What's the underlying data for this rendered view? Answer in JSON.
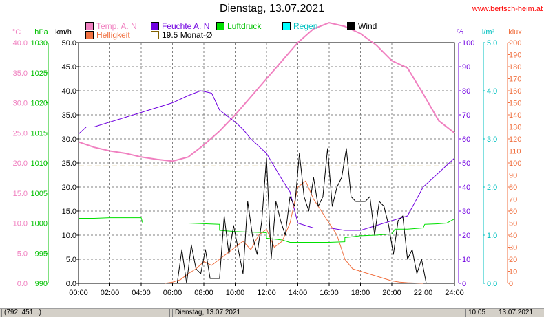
{
  "header": {
    "title": "Dienstag, 13.07.2021",
    "url": "www.bertsch-heim.at"
  },
  "legend": [
    {
      "label": "Temp. A. N",
      "color": "#f080c0"
    },
    {
      "label": "Feuchte A. N",
      "color": "#7000e0"
    },
    {
      "label": "Luftdruck",
      "color": "#00e000"
    },
    {
      "label": "Regen",
      "color": "#00ffff"
    },
    {
      "label": "Wind",
      "color": "#000000"
    },
    {
      "label": "Helligkeit",
      "color": "#f07040"
    },
    {
      "label": "19.5 Monat-Ø",
      "color": "#ffffff"
    }
  ],
  "statusbar": {
    "cell1": "(792, 451...)",
    "cell2": "Dienstag, 13.07.2021",
    "cell3": "10:05",
    "cell4": "13.07.2021"
  },
  "chart_data": {
    "type": "line",
    "x_unit": "hours",
    "x_range": [
      0,
      24
    ],
    "x_ticks": [
      "00:00",
      "02:00",
      "04:00",
      "06:00",
      "08:00",
      "10:00",
      "12:00",
      "14:00",
      "16:00",
      "18:00",
      "20:00",
      "22:00",
      "24:00"
    ],
    "axes": [
      {
        "unit": "°C",
        "color": "#f080c0",
        "range": [
          0,
          40
        ],
        "ticks": [
          "0.0",
          "5.0",
          "10.0",
          "15.0",
          "20.0",
          "25.0",
          "30.0",
          "35.0",
          "40.0"
        ]
      },
      {
        "unit": "hPa",
        "color": "#00c000",
        "range": [
          990,
          1030
        ],
        "ticks": [
          "990",
          "995",
          "1000",
          "1005",
          "1010",
          "1015",
          "1020",
          "1025",
          "1030"
        ]
      },
      {
        "unit": "km/h",
        "color": "#000000",
        "range": [
          0,
          50
        ],
        "ticks": [
          "0.0",
          "5.0",
          "10.0",
          "15.0",
          "20.0",
          "25.0",
          "30.0",
          "35.0",
          "40.0",
          "45.0",
          "50.0"
        ]
      },
      {
        "unit": "%",
        "color": "#7000e0",
        "range": [
          0,
          100
        ],
        "ticks": [
          "0",
          "10",
          "20",
          "30",
          "40",
          "50",
          "60",
          "70",
          "80",
          "90",
          "100"
        ]
      },
      {
        "unit": "l/m²",
        "color": "#00c0c0",
        "range": [
          0,
          5
        ],
        "ticks": [
          "0.0",
          "1.0",
          "2.0",
          "3.0",
          "4.0",
          "5.0"
        ]
      },
      {
        "unit": "klux",
        "color": "#f07040",
        "range": [
          0,
          200
        ],
        "ticks": [
          "0",
          "10",
          "20",
          "30",
          "40",
          "50",
          "60",
          "70",
          "80",
          "90",
          "100",
          "110",
          "120",
          "130",
          "140",
          "150",
          "160",
          "170",
          "180",
          "190",
          "200"
        ]
      }
    ],
    "monthly_avg": {
      "label": "19.5 Monat-Ø",
      "value": 19.5,
      "color": "#b08000"
    },
    "series": [
      {
        "name": "Temp. A. N",
        "axis": 0,
        "color": "#f080c0",
        "x": [
          0,
          1,
          2,
          3,
          4,
          5,
          6,
          7,
          8,
          9,
          10,
          11,
          12,
          13,
          14,
          15,
          16,
          17,
          18,
          19,
          20,
          21,
          22,
          23,
          24
        ],
        "y": [
          23.5,
          22.6,
          22.0,
          21.6,
          21.0,
          20.6,
          20.3,
          21.0,
          23.0,
          25.3,
          28.0,
          31.0,
          34.0,
          37.0,
          40.0,
          42.3,
          43.3,
          42.7,
          41.5,
          39.6,
          37.0,
          35.8,
          31.5,
          27.0,
          25.0
        ]
      },
      {
        "name": "Feuchte A. N",
        "axis": 3,
        "color": "#7000e0",
        "x": [
          0,
          0.5,
          1,
          2,
          3,
          4,
          5,
          6,
          7,
          7.8,
          8.5,
          9,
          10,
          10.5,
          11,
          12,
          13,
          13.5,
          14,
          14.5,
          15,
          16,
          17,
          18,
          19,
          20,
          20.5,
          21,
          22,
          22.5,
          23,
          24
        ],
        "y": [
          62,
          65,
          65,
          67,
          69,
          71,
          73,
          75,
          78,
          80,
          79,
          72,
          67,
          64,
          60,
          54,
          43,
          38,
          25,
          24,
          23,
          23,
          22,
          22,
          24,
          26,
          27,
          28,
          40,
          43,
          46,
          52
        ]
      },
      {
        "name": "Luftdruck",
        "axis": 1,
        "color": "#00e000",
        "x": [
          0,
          1,
          2,
          3,
          4,
          4.1,
          5,
          6,
          7,
          8,
          9,
          9,
          10,
          11,
          12,
          12,
          13,
          13.5,
          14,
          15,
          16,
          17,
          17,
          18,
          19,
          20,
          20.2,
          21,
          22,
          22.1,
          23,
          23.5,
          24
        ],
        "y": [
          1000.8,
          1000.8,
          1000.9,
          1000.9,
          1000.9,
          1000.0,
          1000.0,
          1000.0,
          1000.0,
          999.9,
          999.8,
          998.8,
          998.6,
          998.5,
          998.4,
          997.5,
          997.2,
          996.8,
          996.8,
          996.8,
          996.8,
          996.9,
          997.6,
          997.9,
          998.0,
          998.2,
          999.0,
          999.0,
          999.2,
          999.8,
          999.9,
          1000.0,
          1000.7
        ]
      },
      {
        "name": "Helligkeit",
        "axis": 5,
        "color": "#f07040",
        "x": [
          5.5,
          6,
          6.5,
          7,
          7.5,
          8,
          8.5,
          9,
          9.5,
          10,
          10.5,
          11,
          11.5,
          12,
          12.5,
          13,
          13.5,
          14,
          14.5,
          15,
          15.5,
          16,
          16.5,
          17,
          17.5,
          18,
          18.5,
          19,
          19.5,
          20,
          20.5,
          21,
          22
        ],
        "y": [
          0,
          1,
          3,
          8,
          12,
          18,
          15,
          20,
          25,
          30,
          35,
          28,
          40,
          45,
          30,
          35,
          50,
          80,
          85,
          70,
          60,
          50,
          40,
          20,
          12,
          10,
          8,
          6,
          4,
          2,
          1,
          0.5,
          0
        ]
      },
      {
        "name": "Wind",
        "axis": 2,
        "color": "#000000",
        "x": [
          6.3,
          6.6,
          6.9,
          7.2,
          7.5,
          7.8,
          8.1,
          8.4,
          8.7,
          9.0,
          9.3,
          9.6,
          9.9,
          10.2,
          10.5,
          10.8,
          11.1,
          11.4,
          11.7,
          12.0,
          12.3,
          12.6,
          12.9,
          13.2,
          13.5,
          13.8,
          14.1,
          14.4,
          14.7,
          15.0,
          15.3,
          15.6,
          15.9,
          16.2,
          16.5,
          16.8,
          17.1,
          17.4,
          17.7,
          18.0,
          18.3,
          18.6,
          18.9,
          19.2,
          19.5,
          19.8,
          20.1,
          20.4,
          20.7,
          21.0,
          21.3,
          21.6,
          21.9,
          22.2
        ],
        "y": [
          0,
          7,
          0,
          8,
          3,
          2,
          7,
          1,
          1,
          1,
          14,
          6,
          12,
          7,
          2,
          17,
          10,
          6,
          13,
          26,
          5,
          17,
          13,
          10,
          18,
          16,
          27,
          18,
          15,
          22,
          16,
          18,
          28,
          16,
          20,
          22,
          28,
          18,
          17,
          17,
          17,
          18,
          10,
          17,
          16,
          12,
          6,
          13,
          14,
          5,
          7,
          2,
          5,
          0
        ]
      }
    ]
  }
}
